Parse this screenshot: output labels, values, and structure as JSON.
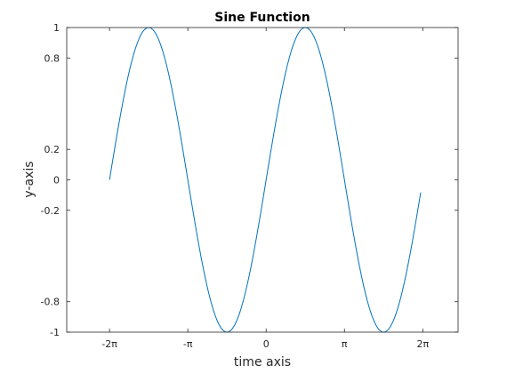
{
  "chart_data": {
    "type": "line",
    "title": "Sine Function",
    "xlabel": "time axis",
    "ylabel": "y-axis",
    "xlim": [
      -8.0,
      7.7
    ],
    "ylim": [
      -1,
      1
    ],
    "xticks": [
      -6.2832,
      -3.1416,
      0,
      3.1416,
      6.2832
    ],
    "xtick_labels": [
      "-2π",
      "-π",
      "0",
      "π",
      "2π"
    ],
    "yticks": [
      -1,
      -0.8,
      -0.2,
      0,
      0.2,
      0.8,
      1
    ],
    "ytick_labels": [
      "-1",
      "-0.8",
      "-0.2",
      "0",
      "0.2",
      "0.8",
      "1"
    ],
    "grid": false,
    "series": [
      {
        "function": "sin(x)",
        "x_start": -6.2832,
        "x_end": 6.2,
        "color": "#0072BD"
      }
    ]
  }
}
